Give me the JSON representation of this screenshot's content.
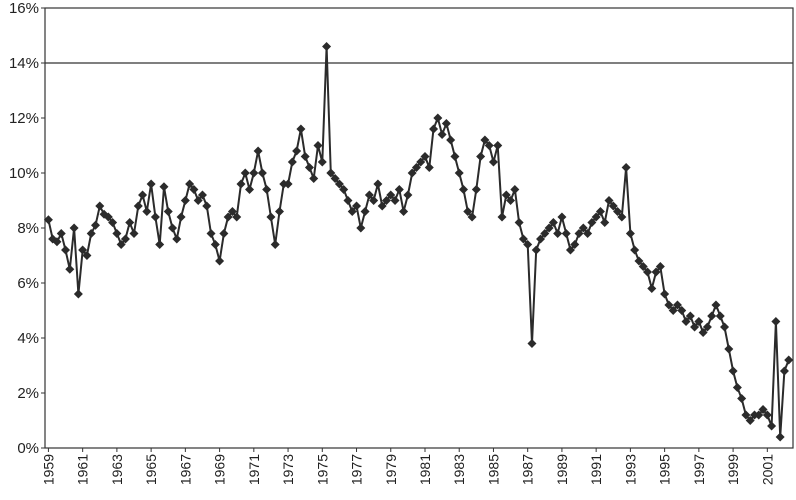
{
  "chart_data": {
    "type": "line",
    "color": "#2b2b2b",
    "xlim": [
      1958.8,
      2002.5
    ],
    "xticks": [
      1959,
      1961,
      1963,
      1965,
      1967,
      1969,
      1971,
      1973,
      1975,
      1977,
      1979,
      1981,
      1983,
      1985,
      1987,
      1989,
      1991,
      1993,
      1995,
      1997,
      1999,
      2001
    ],
    "ylim": [
      0,
      16
    ],
    "yticks": [
      {
        "value": 0,
        "label": "0%"
      },
      {
        "value": 2,
        "label": "2%"
      },
      {
        "value": 4,
        "label": "4%"
      },
      {
        "value": 6,
        "label": "6%"
      },
      {
        "value": 8,
        "label": "8%"
      },
      {
        "value": 10,
        "label": "10%"
      },
      {
        "value": 12,
        "label": "12%"
      },
      {
        "value": 14,
        "label": "14%"
      },
      {
        "value": 16,
        "label": "16%"
      }
    ],
    "reference_line": 14,
    "x": [
      1959,
      1959.25,
      1959.5,
      1959.75,
      1960,
      1960.25,
      1960.5,
      1960.75,
      1961,
      1961.25,
      1961.5,
      1961.75,
      1962,
      1962.25,
      1962.5,
      1962.75,
      1963,
      1963.25,
      1963.5,
      1963.75,
      1964,
      1964.25,
      1964.5,
      1964.75,
      1965,
      1965.25,
      1965.5,
      1965.75,
      1966,
      1966.25,
      1966.5,
      1966.75,
      1967,
      1967.25,
      1967.5,
      1967.75,
      1968,
      1968.25,
      1968.5,
      1968.75,
      1969,
      1969.25,
      1969.5,
      1969.75,
      1970,
      1970.25,
      1970.5,
      1970.75,
      1971,
      1971.25,
      1971.5,
      1971.75,
      1972,
      1972.25,
      1972.5,
      1972.75,
      1973,
      1973.25,
      1973.5,
      1973.75,
      1974,
      1974.25,
      1974.5,
      1974.75,
      1975,
      1975.25,
      1975.5,
      1975.75,
      1976,
      1976.25,
      1976.5,
      1976.75,
      1977,
      1977.25,
      1977.5,
      1977.75,
      1978,
      1978.25,
      1978.5,
      1978.75,
      1979,
      1979.25,
      1979.5,
      1979.75,
      1980,
      1980.25,
      1980.5,
      1980.75,
      1981,
      1981.25,
      1981.5,
      1981.75,
      1982,
      1982.25,
      1982.5,
      1982.75,
      1983,
      1983.25,
      1983.5,
      1983.75,
      1984,
      1984.25,
      1984.5,
      1984.75,
      1985,
      1985.25,
      1985.5,
      1985.75,
      1986,
      1986.25,
      1986.5,
      1986.75,
      1987,
      1987.25,
      1987.5,
      1987.75,
      1988,
      1988.25,
      1988.5,
      1988.75,
      1989,
      1989.25,
      1989.5,
      1989.75,
      1990,
      1990.25,
      1990.5,
      1990.75,
      1991,
      1991.25,
      1991.5,
      1991.75,
      1992,
      1992.25,
      1992.5,
      1992.75,
      1993,
      1993.25,
      1993.5,
      1993.75,
      1994,
      1994.25,
      1994.5,
      1994.75,
      1995,
      1995.25,
      1995.5,
      1995.75,
      1996,
      1996.25,
      1996.5,
      1996.75,
      1997,
      1997.25,
      1997.5,
      1997.75,
      1998,
      1998.25,
      1998.5,
      1998.75,
      1999,
      1999.25,
      1999.5,
      1999.75,
      2000,
      2000.25,
      2000.5,
      2000.75,
      2001,
      2001.25,
      2001.5,
      2001.75,
      2002,
      2002.25
    ],
    "values": [
      8.3,
      7.6,
      7.5,
      7.8,
      7.2,
      6.5,
      8.0,
      5.6,
      7.2,
      7.0,
      7.8,
      8.1,
      8.8,
      8.5,
      8.4,
      8.2,
      7.8,
      7.4,
      7.6,
      8.2,
      7.8,
      8.8,
      9.2,
      8.6,
      9.6,
      8.4,
      7.4,
      9.5,
      8.6,
      8.0,
      7.6,
      8.4,
      9.0,
      9.6,
      9.4,
      9.0,
      9.2,
      8.8,
      7.8,
      7.4,
      6.8,
      7.8,
      8.4,
      8.6,
      8.4,
      9.6,
      10.0,
      9.4,
      10.0,
      10.8,
      10.0,
      9.4,
      8.4,
      7.4,
      8.6,
      9.6,
      9.6,
      10.4,
      10.8,
      11.6,
      10.6,
      10.2,
      9.8,
      11.0,
      10.4,
      14.6,
      10.0,
      9.8,
      9.6,
      9.4,
      9.0,
      8.6,
      8.8,
      8.0,
      8.6,
      9.2,
      9.0,
      9.6,
      8.8,
      9.0,
      9.2,
      9.0,
      9.4,
      8.6,
      9.2,
      10.0,
      10.2,
      10.4,
      10.6,
      10.2,
      11.6,
      12.0,
      11.4,
      11.8,
      11.2,
      10.6,
      10.0,
      9.4,
      8.6,
      8.4,
      9.4,
      10.6,
      11.2,
      11.0,
      10.4,
      11.0,
      8.4,
      9.2,
      9.0,
      9.4,
      8.2,
      7.6,
      7.4,
      3.8,
      7.2,
      7.6,
      7.8,
      8.0,
      8.2,
      7.8,
      8.4,
      7.8,
      7.2,
      7.4,
      7.8,
      8.0,
      7.8,
      8.2,
      8.4,
      8.6,
      8.2,
      9.0,
      8.8,
      8.6,
      8.4,
      10.2,
      7.8,
      7.2,
      6.8,
      6.6,
      6.4,
      5.8,
      6.4,
      6.6,
      5.6,
      5.2,
      5.0,
      5.2,
      5.0,
      4.6,
      4.8,
      4.4,
      4.6,
      4.2,
      4.4,
      4.8,
      5.2,
      4.8,
      4.4,
      3.6,
      2.8,
      2.2,
      1.8,
      1.2,
      1.0,
      1.2,
      1.2,
      1.4,
      1.2,
      0.8,
      4.6,
      0.4,
      2.8,
      3.2
    ]
  }
}
